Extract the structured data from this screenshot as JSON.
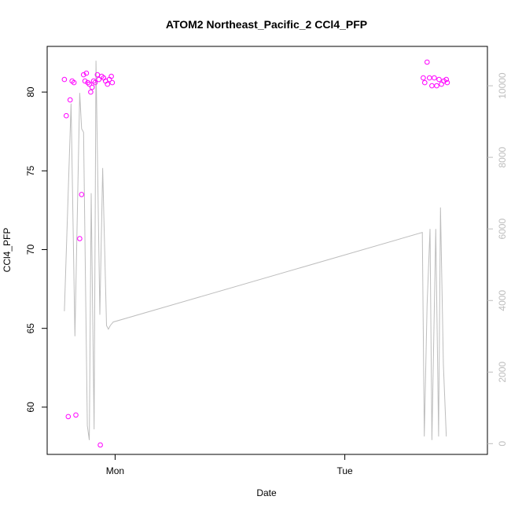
{
  "chart_data": {
    "type": "scatter",
    "title": "ATOM2 Northeast_Pacific_2 CCl4_PFP",
    "xlabel": "Date",
    "ylabel": "CCl4_PFP",
    "x_tick_labels": [
      "Mon",
      "Tue"
    ],
    "ylim": [
      57,
      82.9
    ],
    "y_ticks": [
      60,
      65,
      70,
      75,
      80
    ],
    "secondary_y": {
      "ylim": [
        -300,
        11100
      ],
      "ticks": [
        0,
        2000,
        4000,
        6000,
        8000,
        10000
      ],
      "color": "#bdbdbd"
    },
    "x_unit": "hours relative to Monday 00:00",
    "xlim": [
      -7.1,
      38.9
    ],
    "grid": false,
    "colors": {
      "points": "#ff00ff",
      "line": "#bdbdbd",
      "axis": "#000000"
    },
    "series": [
      {
        "kind": "points",
        "axis": "left",
        "x": [
          -5.3,
          -5.1,
          -4.9,
          -4.7,
          -4.5,
          -4.3,
          -4.1,
          -3.7,
          -3.5,
          -3.3,
          -3.15,
          -3.0,
          -2.85,
          -2.7,
          -2.55,
          -2.4,
          -2.25,
          -2.1,
          -1.85,
          -1.7,
          -1.55,
          -1.4,
          -1.2,
          -1.0,
          -0.8,
          -0.6,
          -0.4,
          -0.3,
          32.2,
          32.35,
          32.6,
          32.85,
          33.1,
          33.35,
          33.6,
          33.85,
          34.1,
          34.35,
          34.6,
          34.7
        ],
        "y": [
          80.8,
          78.5,
          59.4,
          79.5,
          80.7,
          80.6,
          59.5,
          70.7,
          73.5,
          81.1,
          80.7,
          81.2,
          80.6,
          80.5,
          80.0,
          80.3,
          80.7,
          80.6,
          81.1,
          80.8,
          57.6,
          81.0,
          80.9,
          80.7,
          80.5,
          80.8,
          81.0,
          80.6,
          80.9,
          80.6,
          81.9,
          80.9,
          80.4,
          80.9,
          80.4,
          80.8,
          80.5,
          80.7,
          80.8,
          80.6
        ]
      },
      {
        "kind": "line",
        "axis": "right",
        "x": [
          -5.3,
          -4.6,
          -4.2,
          -3.7,
          -3.5,
          -3.3,
          -2.9,
          -2.7,
          -2.5,
          -2.2,
          -2.0,
          -1.6,
          -1.3,
          -0.9,
          -0.7,
          -0.5,
          -0.2,
          32.1,
          32.3,
          32.6,
          32.9,
          33.1,
          33.5,
          33.8,
          34.0,
          34.3,
          34.6
        ],
        "y": [
          3700,
          9500,
          3000,
          9800,
          8800,
          8700,
          500,
          100,
          7000,
          400,
          10700,
          3600,
          7700,
          3300,
          3200,
          3300,
          3400,
          5900,
          200,
          3900,
          6000,
          100,
          6000,
          200,
          6600,
          2200,
          200
        ]
      }
    ]
  }
}
